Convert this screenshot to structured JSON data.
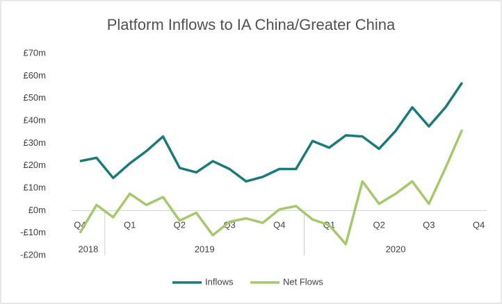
{
  "chart_data": {
    "type": "line",
    "title": "Platform Inflows to IA China/Greater China",
    "quarters": [
      "Q4",
      "Q1",
      "Q2",
      "Q3",
      "Q4",
      "Q1",
      "Q2",
      "Q3",
      "Q4"
    ],
    "years": [
      "2018",
      "2019",
      "2020"
    ],
    "series": [
      {
        "name": "Inflows",
        "color": "#1a7a7a",
        "values": [
          22,
          23.5,
          14.5,
          21,
          26.5,
          33,
          19,
          17,
          22,
          18.5,
          13,
          15,
          18.5,
          18.5,
          31,
          28,
          33.5,
          33,
          27.5,
          35.5,
          46,
          37.5,
          46,
          57
        ]
      },
      {
        "name": "Net Flows",
        "color": "#a5c96a",
        "values": [
          -10,
          2.5,
          -3,
          7.5,
          2.5,
          6,
          -4.5,
          -1,
          -11,
          -5,
          -3.5,
          -5.5,
          0.5,
          2,
          -4,
          -6.5,
          -15,
          13,
          3,
          7.5,
          13,
          3,
          19,
          36
        ]
      }
    ],
    "ylim": [
      -20,
      70
    ],
    "yticks": [
      {
        "value": -20,
        "label": "-£20m"
      },
      {
        "value": -10,
        "label": "-£10m"
      },
      {
        "value": 0,
        "label": "£0m"
      },
      {
        "value": 10,
        "label": "£10m"
      },
      {
        "value": 20,
        "label": "£20m"
      },
      {
        "value": 30,
        "label": "£30m"
      },
      {
        "value": 40,
        "label": "£40m"
      },
      {
        "value": 50,
        "label": "£50m"
      },
      {
        "value": 60,
        "label": "£60m"
      },
      {
        "value": 70,
        "label": "£70m"
      }
    ],
    "legend": "bottom"
  }
}
